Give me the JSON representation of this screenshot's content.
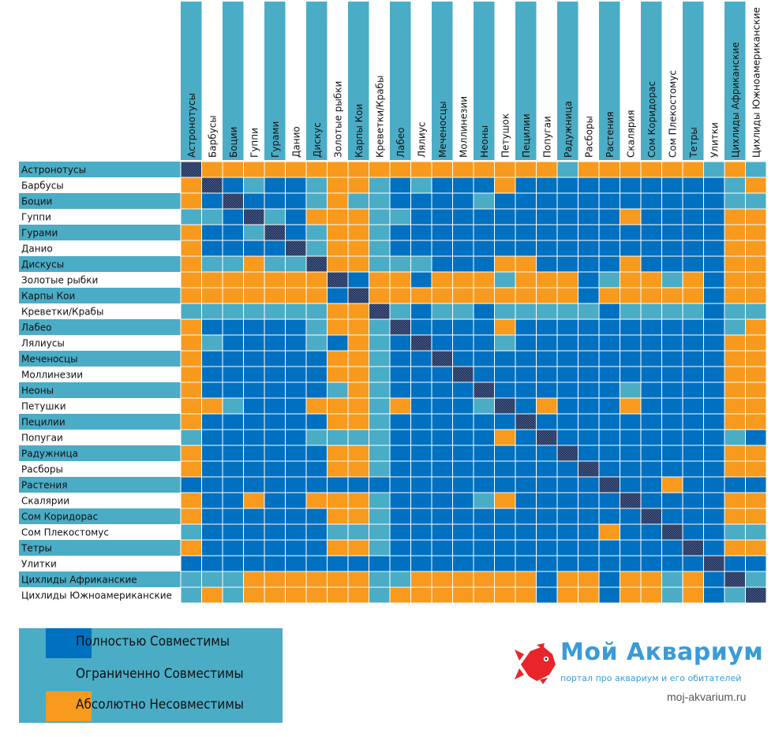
{
  "matrix": {
    "species": [
      "Астронотусы",
      "Барбусы",
      "Боции",
      "Гуппи",
      "Гурами",
      "Данио",
      "Дискус",
      "Золотые рыбки",
      "Карпы Кои",
      "Креветки/Крабы",
      "Лабео",
      "Лялиус",
      "Меченосцы",
      "Моллинезии",
      "Неоны",
      "Петушок",
      "Пецилии",
      "Попугаи",
      "Радужница",
      "Расборы",
      "Растения",
      "Скалярии",
      "Сом Коридорас",
      "Сом Плекостомус",
      "Тетры",
      "Улитки",
      "Цихлиды Африканские",
      "Цихлиды Южноамериканские"
    ],
    "row_labels": [
      "Астронотусы",
      "Барбусы",
      "Боции",
      "Гуппи",
      "Гурами",
      "Данио",
      "Дискусы",
      "Золотые рыбки",
      "Карпы Кои",
      "Креветки/Крабы",
      "Лабео",
      "Лялиусы",
      "Меченосцы",
      "Моллинезии",
      "Неоны",
      "Петушки",
      "Пецилии",
      "Попугаи",
      "Радужница",
      "Расборы",
      "Растения",
      "Скалярии",
      "Сом Коридорас",
      "Сом Плекостомус",
      "Тетры",
      "Улитки",
      "Цихлиды Африканские",
      "Цихлиды Южноамериканские"
    ],
    "col_labels": [
      "Астронотусы",
      "Барбусы",
      "Боции",
      "Гуппи",
      "Гурами",
      "Данио",
      "Дискус",
      "Золотые рыбки",
      "Карпы Кои",
      "Креветки/Крабы",
      "Лабео",
      "Лялиус",
      "Меченосцы",
      "Моллинезии",
      "Неоны",
      "Петушок",
      "Пецилии",
      "Попугаи",
      "Радужница",
      "Расборы",
      "Растения",
      "Скалярия",
      "Сом Коридорас",
      "Сом Плекостомус",
      "Тетры",
      "Улитки",
      "Цихлиды Африканские",
      "Цихлиды Южноамериканские"
    ],
    "legend_codes": {
      "C": "Полностью Совместимы",
      "L": "Ограниченно Совместимы",
      "I": "Абсолютно Несовместимы",
      "X": "same species"
    },
    "cells": [
      "XIIIIIIIIIIIIIIIIILIIIIIILIL",
      "IXCLCCLIILCLCCCICCCCCCCCCCLI",
      "ICXCCCLILLCCCCLCCCCCCCCCCCLL",
      "LLCXLCIIILLCCCCCCCCCCICCCCII",
      "ICCLXCLIILCCCCCCCCCCCCCCCCII",
      "ICCCCXLIILCCCCCCCCCCCCCCCCII",
      "ILLILLXIILLLCCCIICCCCICCCCII",
      "IIIIIIIXCIICIIILIIICLIILICII",
      "IIIIIIICXIIIIIIIIIICIIIIICII",
      "LLLLLLLIIXLCLLCLLLLLCLLLLCLL",
      "ICCCCCLIILXCCCCICCCCCCCCCCLI",
      "ILCCCCLCILCXCCCLCCCCCCCCCCII",
      "ICCCCCCIILCCXCCCCCCCCCCCCCII",
      "ICCCCCCIILCCCXCCCCCCCCCCCCII",
      "ICCCCCCLILCCCCXCCCCCCLCCCCII",
      "IILCCCIIILICCCLXCICCCICCCCII",
      "ICCCCCCIILCCCCCCXCCCCCCCCCII",
      "LCCCCCLLLLCCCCCICXCCCCCCCCLC",
      "ICCCCCCIILCCCCCCCCXCCCCCCCII",
      "ICCCCCCIILCCCCCCCCCXCCCCCCII",
      "CCCCCCCCCCCCCCCCCCCCXCCICCCC",
      "ICCICCIIILCCCCLICCCCCXCCCCII",
      "ICCCCCCIILCCCCCCCCCCCCXCCCII",
      "LCCCCCCLLLCCCCCCCCCCICCXCCLL",
      "ICCCCCCIILCCCCCCCCCCCCCCXCII",
      "CCCCCCCCCCCCCCCCCCCCCCCCCXCC",
      "LLLIIIIIILLIIIIIICIICIILICXL",
      "LILIIIIIILIIIIIIICIICIILICLX"
    ]
  },
  "legend": [
    {
      "label": "Полностью Совместимы",
      "code": "C"
    },
    {
      "label": "Ограниченно Совместимы",
      "code": "L"
    },
    {
      "label": "Абсолютно Несовместимы",
      "code": "I"
    }
  ],
  "colors": {
    "compatible": "#0070C0",
    "limited": "#4BACC6",
    "incompatible": "#F79A1D",
    "same_species": "#2F4370",
    "row_band": "#4BACC6"
  },
  "logo": {
    "title": "Мой Аквариум",
    "subtitle": "портал про аквариум и его обитателей",
    "url": "moj-akvarium.ru",
    "icon": "fish-icon"
  }
}
